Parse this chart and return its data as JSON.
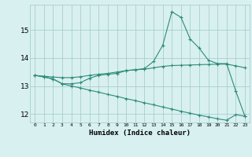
{
  "x": [
    0,
    1,
    2,
    3,
    4,
    5,
    6,
    7,
    8,
    9,
    10,
    11,
    12,
    13,
    14,
    15,
    16,
    17,
    18,
    19,
    20,
    21,
    22,
    23
  ],
  "line1": [
    13.38,
    13.32,
    13.25,
    13.08,
    13.08,
    13.12,
    13.28,
    13.38,
    13.42,
    13.45,
    13.55,
    13.58,
    13.62,
    13.88,
    14.45,
    15.65,
    15.45,
    14.68,
    14.35,
    13.92,
    13.8,
    13.8,
    12.82,
    11.92
  ],
  "line2": [
    13.38,
    13.35,
    13.32,
    13.3,
    13.3,
    13.33,
    13.38,
    13.42,
    13.45,
    13.5,
    13.55,
    13.58,
    13.6,
    13.65,
    13.7,
    13.73,
    13.74,
    13.75,
    13.76,
    13.77,
    13.78,
    13.78,
    13.72,
    13.65
  ],
  "line3": [
    13.38,
    13.33,
    13.25,
    13.08,
    13.0,
    12.93,
    12.85,
    12.78,
    12.7,
    12.63,
    12.55,
    12.48,
    12.4,
    12.33,
    12.25,
    12.18,
    12.1,
    12.03,
    11.96,
    11.9,
    11.83,
    11.78,
    11.98,
    11.92
  ],
  "line_color": "#2e8b7a",
  "bg_color": "#d8f0f0",
  "grid_color": "#a0c8c8",
  "xlabel": "Humidex (Indice chaleur)",
  "ylim": [
    11.7,
    15.9
  ],
  "xlim": [
    -0.5,
    23.5
  ],
  "yticks": [
    12,
    13,
    14,
    15
  ],
  "xtick_labels": [
    "0",
    "1",
    "2",
    "3",
    "4",
    "5",
    "6",
    "7",
    "8",
    "9",
    "10",
    "11",
    "12",
    "13",
    "14",
    "15",
    "16",
    "17",
    "18",
    "19",
    "20",
    "21",
    "22",
    "23"
  ]
}
